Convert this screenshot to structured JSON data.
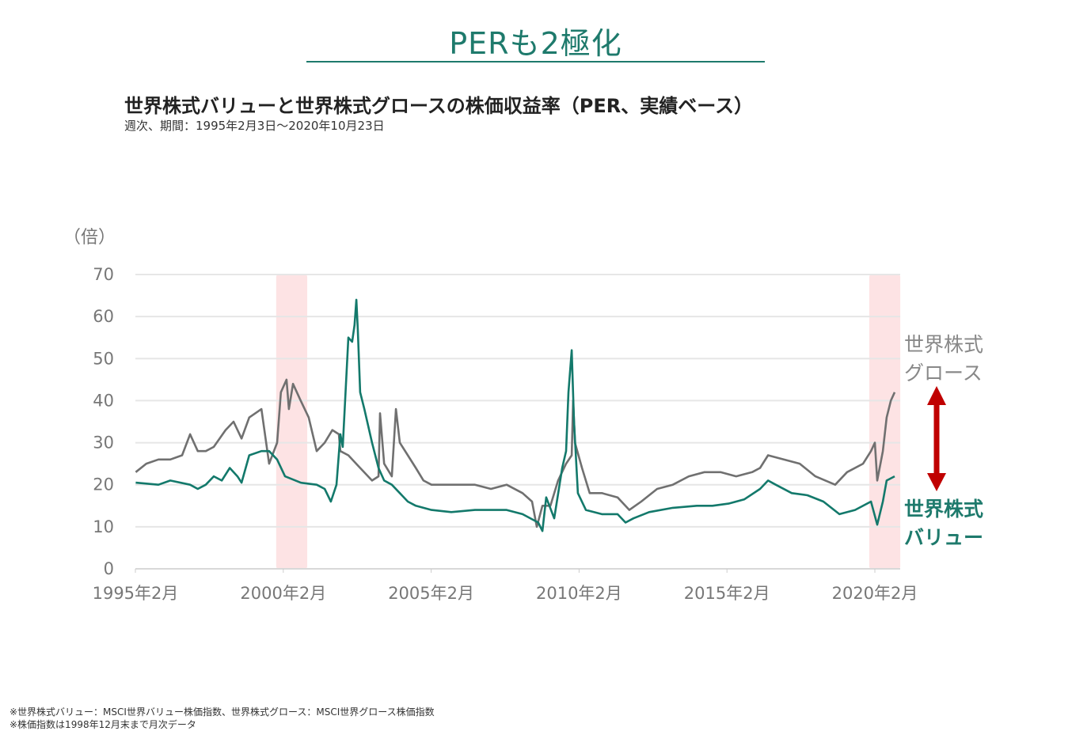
{
  "header": {
    "title": "PERも2極化"
  },
  "chart_data": {
    "type": "line",
    "title": "世界株式バリューと世界株式グロースの株価収益率（PER、実績ベース）",
    "subtitle": "週次、期間：1995年2月3日～2020年10月23日",
    "ylabel": "（倍）",
    "xlabel": "",
    "ylim": [
      0,
      70
    ],
    "yticks": [
      "0",
      "10",
      "20",
      "30",
      "40",
      "50",
      "60",
      "70"
    ],
    "xticks": [
      {
        "year": 1995.09,
        "label": "1995年2月"
      },
      {
        "year": 2000.09,
        "label": "2000年2月"
      },
      {
        "year": 2005.09,
        "label": "2005年2月"
      },
      {
        "year": 2010.09,
        "label": "2010年2月"
      },
      {
        "year": 2015.09,
        "label": "2015年2月"
      },
      {
        "year": 2020.09,
        "label": "2020年2月"
      }
    ],
    "xlim": [
      1995.09,
      2020.82
    ],
    "grid": true,
    "highlight_periods": [
      [
        1999.85,
        2000.9
      ],
      [
        2019.9,
        2020.95
      ]
    ],
    "series": [
      {
        "name": "世界株式グロース",
        "label_lines": [
          "世界株式",
          "グロース"
        ],
        "color": "#707070",
        "x": [
          1995.1,
          1995.46,
          1995.87,
          1996.27,
          1996.67,
          1996.94,
          1997.2,
          1997.47,
          1997.74,
          1998.14,
          1998.41,
          1998.68,
          1998.94,
          1999.35,
          1999.61,
          1999.88,
          2000.01,
          2000.2,
          2000.28,
          2000.42,
          2000.68,
          2000.95,
          2001.22,
          2001.49,
          2001.75,
          2001.97,
          2002.02,
          2002.29,
          2002.69,
          2003.09,
          2003.31,
          2003.36,
          2003.5,
          2003.76,
          2003.9,
          2004.03,
          2004.3,
          2004.57,
          2004.83,
          2005.1,
          2005.5,
          2006.04,
          2006.57,
          2007.11,
          2007.64,
          2008.18,
          2008.5,
          2008.66,
          2008.85,
          2009.12,
          2009.38,
          2009.65,
          2009.84,
          2009.89,
          2009.95,
          2010.19,
          2010.45,
          2010.86,
          2011.39,
          2011.79,
          2012.19,
          2012.73,
          2013.26,
          2013.8,
          2014.33,
          2014.87,
          2015.4,
          2015.94,
          2016.21,
          2016.48,
          2017.01,
          2017.55,
          2018.08,
          2018.75,
          2019.15,
          2019.69,
          2019.96,
          2020.09,
          2020.17,
          2020.36,
          2020.49,
          2020.63,
          2020.76
        ],
        "values": [
          23,
          25,
          26,
          26,
          27,
          32,
          28,
          28,
          29,
          33,
          35,
          31,
          36,
          38,
          25,
          30,
          42,
          45,
          38,
          44,
          40,
          36,
          28,
          30,
          33,
          32,
          28,
          27,
          24,
          21,
          22,
          37,
          25,
          22,
          38,
          30,
          27,
          24,
          21,
          20,
          20,
          20,
          20,
          19,
          20,
          18,
          16,
          10,
          15,
          15,
          21,
          25,
          27,
          40,
          30,
          24,
          18,
          18,
          17,
          14,
          16,
          19,
          20,
          22,
          23,
          23,
          22,
          23,
          24,
          27,
          26,
          25,
          22,
          20,
          23,
          25,
          28,
          30,
          21,
          28,
          36,
          40,
          42
        ]
      },
      {
        "name": "世界株式バリュー",
        "label_lines": [
          "世界株式",
          "バリュー"
        ],
        "color": "#13796b",
        "x": [
          1995.1,
          1995.87,
          1996.27,
          1996.94,
          1997.2,
          1997.47,
          1997.74,
          1998.01,
          1998.28,
          1998.54,
          1998.68,
          1998.94,
          1999.35,
          1999.61,
          1999.88,
          2000.15,
          2000.68,
          2001.22,
          2001.49,
          2001.7,
          2001.89,
          2002.02,
          2002.1,
          2002.29,
          2002.42,
          2002.5,
          2002.56,
          2002.61,
          2002.69,
          2002.83,
          2003.09,
          2003.31,
          2003.5,
          2003.76,
          2004.03,
          2004.3,
          2004.57,
          2005.1,
          2005.77,
          2006.57,
          2007.64,
          2008.18,
          2008.71,
          2008.85,
          2008.98,
          2009.25,
          2009.52,
          2009.65,
          2009.73,
          2009.84,
          2009.92,
          2010.05,
          2010.32,
          2010.86,
          2011.39,
          2011.66,
          2011.93,
          2012.46,
          2013.26,
          2014.07,
          2014.6,
          2015.14,
          2015.67,
          2016.21,
          2016.48,
          2016.74,
          2017.28,
          2017.81,
          2018.35,
          2018.89,
          2019.42,
          2019.96,
          2020.17,
          2020.36,
          2020.49,
          2020.76
        ],
        "values": [
          20.5,
          20,
          21,
          20,
          19,
          20,
          22,
          21,
          24,
          22,
          20.5,
          27,
          28,
          28,
          26,
          22,
          20.5,
          20,
          19,
          16,
          20,
          32,
          29,
          55,
          54,
          58,
          64,
          57,
          42,
          38,
          30,
          24,
          21,
          20,
          18,
          16,
          15,
          14,
          13.5,
          14,
          14,
          13,
          11,
          9,
          17,
          12,
          24,
          28,
          42,
          52,
          35,
          18,
          14,
          13,
          13,
          11,
          12,
          13.5,
          14.5,
          15,
          15,
          15.5,
          16.5,
          19,
          21,
          20,
          18,
          17.5,
          16,
          13,
          14,
          16,
          10.5,
          16,
          21,
          22
        ]
      }
    ]
  },
  "footnotes": [
    "※世界株式バリュー：MSCI世界バリュー株価指数、世界株式グロース：MSCI世界グロース株価指数",
    "※株価指数は1998年12月末まで月次データ"
  ]
}
